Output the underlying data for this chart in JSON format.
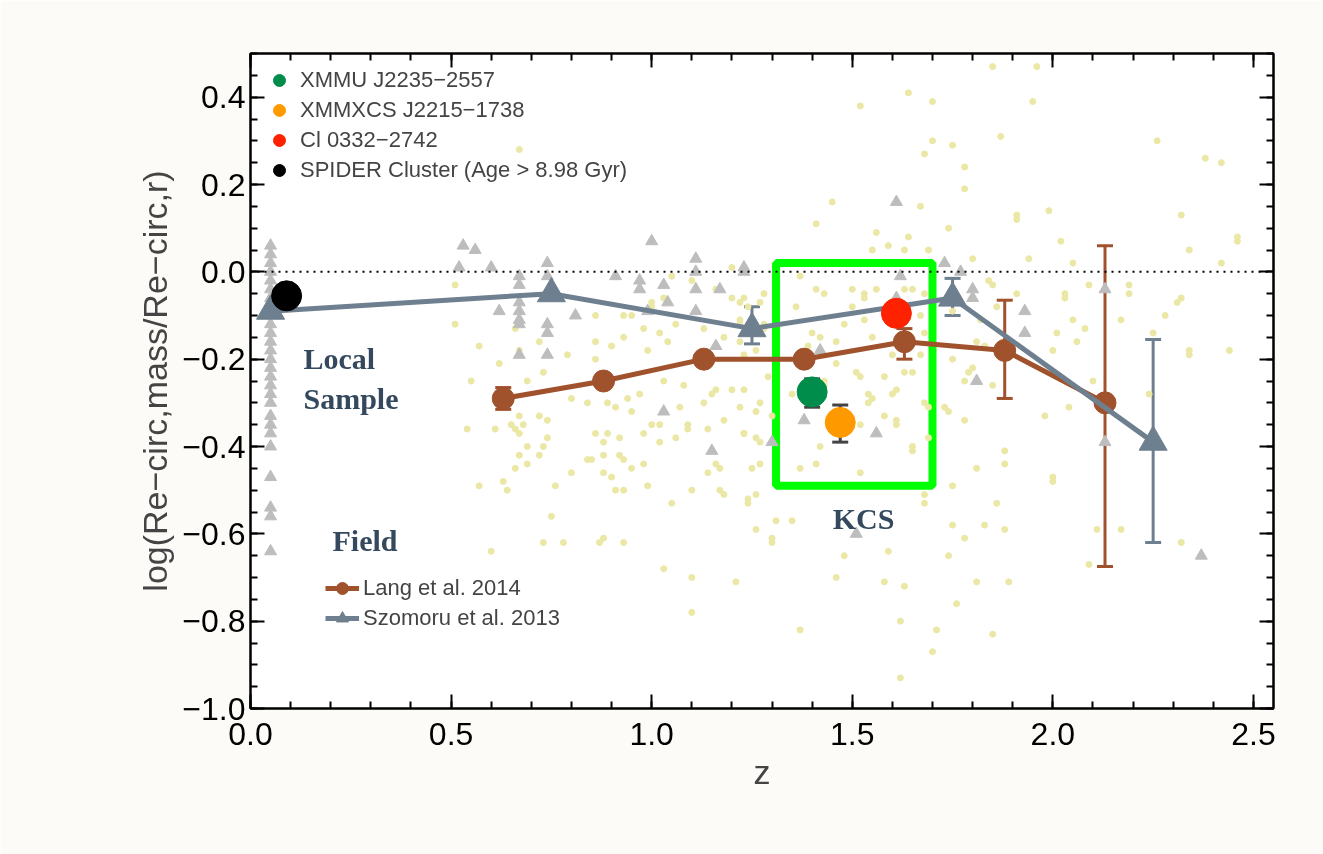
{
  "chart_data": {
    "type": "scatter",
    "xlabel": "z",
    "ylabel": "log(Re−circ,mass/Re−circ,r)",
    "xlim": [
      0,
      2.55
    ],
    "ylim": [
      -1.0,
      0.5
    ],
    "xticks": [
      {
        "value": 0,
        "label": "0.0"
      },
      0.5,
      {
        "value": 1,
        "label": "1.0"
      },
      1.5,
      {
        "value": 2,
        "label": "2.0"
      },
      2.5
    ],
    "yticks": [
      {
        "value": -1.0,
        "label": "−1.0"
      },
      {
        "value": -0.8,
        "label": "−0.8"
      },
      {
        "value": -0.6,
        "label": "−0.6"
      },
      {
        "value": -0.4,
        "label": "−0.4"
      },
      {
        "value": -0.2,
        "label": "−0.2"
      },
      {
        "value": 0,
        "label": "0.0"
      },
      0.2,
      0.4
    ],
    "grid": false,
    "legend": "top left",
    "ref_lines": [
      {
        "axis": "y",
        "value": 0,
        "color": "#000000",
        "line_style": "dotted"
      }
    ],
    "annotations": [
      "Local\nSample",
      "Field",
      "KCS"
    ],
    "series": [
      {
        "marker": "circle",
        "color": "#ebe7a4",
        "x": [
          1.85,
          1.96,
          1.64,
          1.52,
          1.7,
          1.95,
          1.7,
          1.75,
          1.87,
          1.68,
          1.78,
          1.78,
          1.45,
          1.67,
          1.99,
          1.41,
          1.74,
          1.91,
          1.91,
          2.26,
          2.38,
          2.42,
          2.32,
          2.46,
          2.46,
          2.34,
          2.02,
          2.42,
          1.94,
          1.8,
          2.05,
          1.56,
          1.64,
          1.59,
          1.55,
          1.69,
          1.63,
          0.67,
          2.09,
          2.19,
          2.19,
          2.03,
          2.03,
          2.31,
          2.32,
          2.28,
          2.17,
          2.25,
          2.34,
          2.34,
          2.44,
          2.05,
          2.08,
          2.01,
          2.06,
          2.0,
          1.86,
          1.91,
          2.1,
          2.24,
          2.04,
          1.98,
          1.88,
          1.88,
          2.0,
          2.0,
          1.86,
          1.83,
          1.88,
          2.11,
          2.17,
          2.09,
          2.32,
          1.81,
          1.78,
          1.75,
          1.75,
          1.78,
          1.74,
          1.81,
          1.89,
          1.76,
          1.71,
          1.85,
          1.7,
          1.62,
          1.62,
          1.37,
          1.63,
          1.58,
          1.46,
          1.21,
          1.59,
          1.48,
          1.31,
          1.35,
          1.26,
          1.3,
          1.3,
          1.24,
          1.26,
          1.68,
          1.68,
          1.37,
          1.41,
          1.52,
          1.25,
          1.27,
          1.65,
          1.65,
          1.69,
          1.58,
          1.61,
          1.61,
          1.52,
          1.74,
          1.69,
          1.54,
          1.55,
          1.42,
          1.23,
          1.26,
          1.27,
          0.55,
          0.54,
          0.61,
          0.57,
          0.63,
          0.64,
          0.6,
          0.75,
          0.73,
          0.78,
          0.87,
          0.88,
          0.93,
          0.76,
          0.8,
          0.88,
          0.9,
          0.91,
          0.93,
          0.99,
          1.03,
          1.1,
          1.1,
          1.05,
          1.1,
          1.17,
          1.18,
          1.24,
          0.95,
          0.98,
          0.84,
          0.85,
          0.88,
          0.92,
          0.93,
          0.67,
          0.69,
          0.69,
          0.66,
          0.72,
          0.73,
          0.74,
          0.67,
          0.66,
          0.68,
          0.65,
          0.72,
          0.74,
          0.67,
          0.86,
          0.89,
          0.88,
          0.92,
          0.98,
          1.0,
          1.02,
          1.06,
          1.02,
          1.09,
          1.09,
          1.14,
          1.18,
          1.23,
          1.14,
          1.17,
          1.16,
          0.69,
          0.8,
          0.84,
          0.89,
          0.91,
          0.95,
          0.94,
          0.97,
          1.03,
          1.07,
          1.13,
          1.16,
          1.15,
          1.2,
          1.23,
          1.08,
          0.51,
          0.51,
          0.57,
          0.66,
          0.67,
          0.86,
          0.86,
          0.93,
          0.95,
          0.98,
          0.93,
          0.9,
          1.02,
          1.04,
          0.99,
          0.86,
          0.72,
          0.79,
          0.62,
          0.73,
          1.18,
          1.22,
          1.2,
          1.16,
          1.05,
          1.1,
          1.2,
          1.0,
          1.03,
          1.0,
          1.06,
          1.13,
          1.23,
          1.28,
          1.27,
          1.22,
          1.24,
          1.22,
          1.22,
          1.28,
          1.28,
          1.26,
          1.23,
          1.29,
          1.37,
          1.41,
          1.43,
          1.5,
          1.53,
          1.53,
          1.56,
          1.63,
          1.65,
          1.68,
          1.36,
          1.4,
          1.42,
          1.39,
          1.46,
          1.48,
          1.5,
          1.53,
          1.55,
          1.6,
          1.67,
          1.68,
          1.67,
          1.46,
          1.52,
          1.58,
          1.63,
          1.65,
          1.75,
          1.75,
          1.82,
          1.84,
          1.85,
          1.81,
          1.8,
          1.79,
          1.83,
          1.22,
          1.27,
          1.26,
          1.35,
          1.43,
          1.43,
          1.51,
          1.54,
          1.6,
          1.61,
          1.68,
          1.73,
          1.78,
          1.85,
          1.3
        ],
        "values": [
          0.47,
          0.47,
          0.41,
          0.38,
          0.39,
          0.39,
          0.3,
          0.29,
          0.31,
          0.27,
          0.24,
          0.19,
          0.16,
          0.15,
          0.14,
          0.11,
          0.1,
          0.13,
          0.12,
          0.3,
          0.26,
          0.25,
          0.13,
          0.08,
          0.07,
          0.05,
          0.07,
          0.02,
          0.03,
          0.03,
          0.02,
          0.09,
          0.08,
          0.06,
          0.05,
          0.05,
          0.05,
          0.28,
          -0.03,
          -0.03,
          -0.05,
          -0.05,
          -0.06,
          -0.07,
          -0.06,
          -0.1,
          -0.11,
          -0.14,
          -0.18,
          -0.19,
          -0.18,
          -0.11,
          -0.13,
          -0.14,
          -0.16,
          -0.18,
          -0.08,
          -0.05,
          -0.25,
          -0.28,
          -0.31,
          -0.33,
          -0.41,
          -0.44,
          -0.47,
          -0.48,
          -0.53,
          -0.58,
          -0.59,
          -0.59,
          -0.59,
          -0.67,
          -0.62,
          -0.45,
          -0.34,
          -0.49,
          -0.58,
          -0.61,
          -0.65,
          -0.71,
          -0.71,
          -0.76,
          -0.82,
          -0.83,
          -0.87,
          -0.93,
          -0.8,
          -0.82,
          -0.72,
          -0.71,
          -0.7,
          -0.71,
          -0.64,
          -0.65,
          -0.57,
          -0.57,
          -0.59,
          -0.61,
          -0.62,
          -0.53,
          -0.51,
          -0.51,
          -0.53,
          -0.45,
          -0.44,
          -0.46,
          -0.45,
          -0.44,
          -0.4,
          -0.41,
          -0.38,
          -0.33,
          -0.34,
          -0.35,
          -0.35,
          -0.32,
          -0.31,
          -0.3,
          -0.29,
          -0.4,
          -0.37,
          -0.38,
          -0.39,
          -0.25,
          -0.36,
          -0.36,
          -0.49,
          -0.48,
          -0.5,
          -0.64,
          -0.56,
          -0.62,
          -0.62,
          -0.62,
          -0.61,
          -0.62,
          -0.49,
          -0.46,
          -0.46,
          -0.47,
          -0.5,
          -0.5,
          -0.49,
          -0.68,
          -0.7,
          -0.78,
          -0.53,
          -0.5,
          -0.5,
          -0.51,
          -0.52,
          -0.45,
          -0.44,
          -0.43,
          -0.43,
          -0.42,
          -0.42,
          -0.43,
          -0.42,
          -0.4,
          -0.44,
          -0.45,
          -0.42,
          -0.4,
          -0.38,
          -0.37,
          -0.36,
          -0.35,
          -0.35,
          -0.33,
          -0.34,
          -0.33,
          -0.37,
          -0.37,
          -0.39,
          -0.38,
          -0.37,
          -0.35,
          -0.39,
          -0.38,
          -0.35,
          -0.36,
          -0.35,
          -0.36,
          -0.34,
          -0.37,
          -0.46,
          -0.45,
          -0.44,
          -0.25,
          -0.29,
          -0.3,
          -0.3,
          -0.31,
          -0.32,
          -0.29,
          -0.28,
          -0.25,
          -0.31,
          -0.3,
          -0.27,
          -0.28,
          -0.27,
          -0.27,
          -0.26,
          -0.03,
          -0.12,
          -0.17,
          -0.13,
          -0.18,
          -0.1,
          -0.16,
          -0.1,
          -0.1,
          -0.13,
          -0.15,
          -0.17,
          -0.14,
          -0.16,
          -0.18,
          -0.2,
          -0.16,
          -0.19,
          -0.21,
          -0.23,
          -0.15,
          -0.16,
          -0.06,
          -0.04,
          -0.01,
          -0.02,
          0.01,
          -0.07,
          -0.06,
          -0.08,
          -0.12,
          -0.13,
          -0.06,
          -0.05,
          -0.07,
          -0.07,
          -0.08,
          -0.11,
          -0.12,
          -0.12,
          -0.13,
          -0.18,
          -0.19,
          -0.24,
          -0.01,
          -0.04,
          -0.05,
          -0.04,
          -0.05,
          -0.06,
          -0.04,
          -0.04,
          -0.04,
          -0.05,
          -0.08,
          -0.14,
          -0.15,
          -0.17,
          -0.16,
          -0.12,
          -0.08,
          -0.11,
          -0.15,
          -0.19,
          -0.19,
          -0.14,
          -0.1,
          -0.21,
          -0.24,
          -0.24,
          -0.23,
          -0.23,
          -0.09,
          -0.2,
          -0.11,
          -0.02,
          -0.03,
          -0.16,
          -0.22,
          -0.23,
          -0.17,
          -0.31,
          -0.3,
          -0.32,
          -0.28,
          -0.26,
          -0.25,
          -0.23,
          -0.28,
          -0.28,
          -0.27,
          -0.3,
          -0.31,
          -0.25,
          -0.26,
          -0.33
        ]
      },
      {
        "marker": "triangle",
        "color": "#bdbdbd",
        "x": [
          0.05,
          0.05,
          0.05,
          0.05,
          0.05,
          0.05,
          0.05,
          0.05,
          0.05,
          0.05,
          0.05,
          0.05,
          0.05,
          0.05,
          0.05,
          0.05,
          0.05,
          0.05,
          0.05,
          0.05,
          0.05,
          0.05,
          0.05,
          0.05,
          0.05,
          0.53,
          0.56,
          0.52,
          0.6,
          0.67,
          0.67,
          0.74,
          0.74,
          0.62,
          0.67,
          0.67,
          0.67,
          0.67,
          0.74,
          0.74,
          0.81,
          0.67,
          0.74,
          1.0,
          0.91,
          0.97,
          0.97,
          1.03,
          1.11,
          1.11,
          1.11,
          1.17,
          1.23,
          1.04,
          0.99,
          1.11,
          1.16,
          1.03,
          1.15,
          1.23,
          1.61,
          1.62,
          1.73,
          1.77,
          1.8,
          1.8,
          1.93,
          1.93,
          1.61,
          1.42,
          2.13,
          1.38,
          1.56,
          1.3,
          1.81,
          2.13,
          1.51,
          2.37
        ],
        "values": [
          0.06,
          0.04,
          0.02,
          0.0,
          -0.02,
          -0.04,
          -0.06,
          -0.12,
          -0.14,
          -0.16,
          -0.18,
          -0.2,
          -0.22,
          -0.24,
          -0.26,
          -0.28,
          -0.3,
          -0.33,
          -0.35,
          -0.37,
          -0.4,
          -0.47,
          -0.54,
          -0.56,
          -0.64,
          0.06,
          0.05,
          0.01,
          0.01,
          -0.01,
          -0.03,
          0.02,
          -0.01,
          -0.09,
          -0.07,
          -0.09,
          -0.11,
          -0.12,
          -0.12,
          -0.14,
          -0.1,
          -0.19,
          -0.19,
          0.07,
          -0.01,
          -0.02,
          -0.04,
          -0.03,
          0.03,
          0.0,
          -0.04,
          -0.04,
          0.01,
          -0.07,
          -0.09,
          -0.09,
          -0.17,
          -0.32,
          -0.41,
          0.0,
          0.16,
          -0.01,
          0.02,
          0.0,
          -0.04,
          -0.06,
          -0.09,
          -0.14,
          -0.06,
          -0.18,
          -0.04,
          -0.34,
          -0.37,
          -0.39,
          -0.25,
          -0.39,
          -0.6,
          -0.65
        ]
      },
      {
        "name": "Lang et al. 2014",
        "type": "line",
        "marker": "circle",
        "color": "#a0522d",
        "x": [
          0.63,
          0.88,
          1.13,
          1.38,
          1.63,
          1.88,
          2.13
        ],
        "values": [
          -0.29,
          -0.25,
          -0.2,
          -0.2,
          -0.16,
          -0.18,
          -0.3
        ],
        "errors": [
          0.025,
          null,
          null,
          null,
          [
            -0.2,
            -0.13
          ],
          [
            -0.29,
            -0.065
          ],
          [
            -0.675,
            0.06
          ]
        ]
      },
      {
        "name": "Szomoru et al. 2013",
        "type": "line",
        "marker": "triangle",
        "color": "#6e7f8f",
        "x": [
          0.05,
          0.75,
          1.25,
          1.75,
          2.25
        ],
        "values": [
          -0.09,
          -0.05,
          -0.13,
          -0.06,
          -0.39
        ],
        "errors": [
          null,
          null,
          [
            -0.165,
            -0.08
          ],
          [
            -0.1,
            -0.015
          ],
          [
            -0.62,
            -0.155
          ]
        ]
      },
      {
        "name": "XMMU J2235−2557",
        "marker": "circle",
        "color": "#008c4a",
        "x": [
          1.4
        ],
        "values": [
          -0.275
        ],
        "errors": [
          [
            -0.31,
            -0.245
          ]
        ]
      },
      {
        "name": "XMMXCS J2215−1738",
        "marker": "circle",
        "color": "#ff9900",
        "x": [
          1.47
        ],
        "values": [
          -0.345
        ],
        "errors": [
          [
            -0.39,
            -0.305
          ]
        ]
      },
      {
        "name": "Cl 0332−2742",
        "marker": "circle",
        "color": "#ff2200",
        "x": [
          1.61
        ],
        "values": [
          -0.095
        ]
      },
      {
        "name": "SPIDER Cluster (Age > 8.98 Gyr)",
        "marker": "circle",
        "color": "#000000",
        "x": [
          0.09
        ],
        "values": [
          -0.055
        ]
      }
    ]
  }
}
